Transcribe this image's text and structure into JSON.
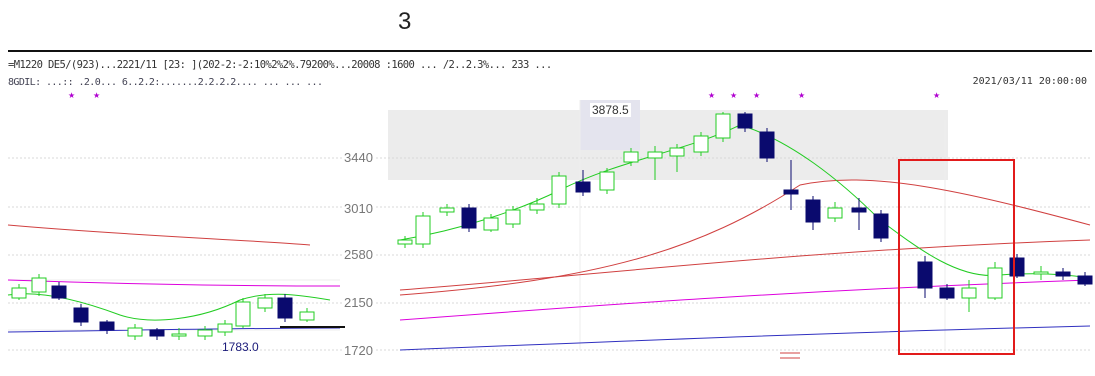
{
  "page": {
    "number": "3"
  },
  "header": {
    "line1": "=M1220 DE5/(923)...2221/11 [23: ](202-2:-2:10%2%2%.79200%...20008 :1600 ... /2..2.3%... 233 ...",
    "line2": "8GDIL: ...:: .2.0... 6..2.2:.......2.2.2.2.... ... ... ...",
    "date": "2021/03/11 20:00:00"
  },
  "chart": {
    "price_labels": [
      "3440",
      "3010",
      "2580",
      "2150",
      "1720"
    ],
    "low_marker": "1783.0",
    "high_marker": "3878.5"
  },
  "colors": {
    "up_candle": "#22cc22",
    "down_candle": "#0a0a6e",
    "ma_short": "#22cc22",
    "ma_long_red": "#d04040",
    "ma_magenta": "#dd00dd",
    "ma_blue": "#3030c0",
    "highlight_box": "#e21b1b"
  }
}
